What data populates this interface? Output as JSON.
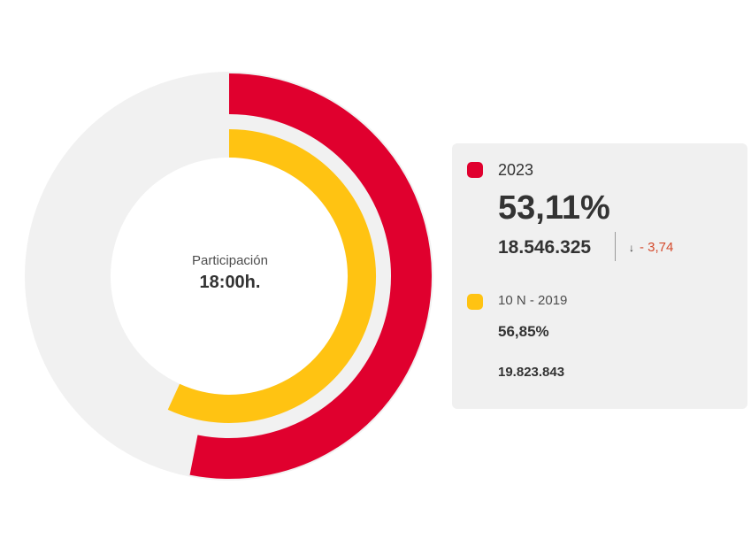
{
  "colors": {
    "series_2023": "#e0002e",
    "series_2019": "#ffc312",
    "track": "#f1f1f1",
    "delta_negative": "#d44a2c"
  },
  "center": {
    "caption": "Participación",
    "time": "18:00h."
  },
  "legend": {
    "s1": {
      "name": "2023",
      "percent": "53,11%",
      "count": "18.546.325",
      "delta_icon": "arrow-down-icon",
      "delta_arrow": "↓",
      "delta": "- 3,74"
    },
    "s2": {
      "name": "10 N - 2019",
      "percent": "56,85%",
      "count": "19.823.843"
    }
  },
  "chart_data": {
    "type": "radial-bar",
    "max": 100,
    "series": [
      {
        "name": "2023",
        "value": 53.11,
        "count": 18546325
      },
      {
        "name": "10 N - 2019",
        "value": 56.85,
        "count": 19823843
      }
    ]
  }
}
